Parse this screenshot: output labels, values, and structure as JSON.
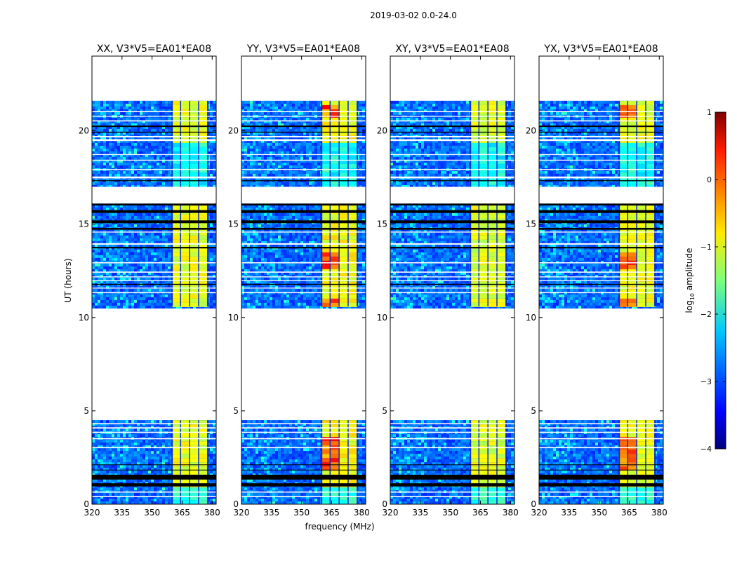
{
  "chart_data": {
    "type": "heatmap",
    "suptitle": "2019-03-02 0.0-24.0",
    "xlabel": "frequency (MHz)",
    "ylabel": "UT (hours)",
    "xlim": [
      320,
      382
    ],
    "ylim": [
      0,
      24
    ],
    "xticks": [
      320,
      335,
      350,
      365,
      380
    ],
    "yticks": [
      0,
      5,
      10,
      15,
      20
    ],
    "panels": [
      {
        "title": "XX, V3*V5=EA01*EA08",
        "pol": "XX",
        "strength": 0.85
      },
      {
        "title": "YY, V3*V5=EA01*EA08",
        "pol": "YY",
        "strength": 1.0
      },
      {
        "title": "XY, V3*V5=EA01*EA08",
        "pol": "XY",
        "strength": 0.78
      },
      {
        "title": "YX, V3*V5=EA01*EA08",
        "pol": "YX",
        "strength": 0.92
      }
    ],
    "data_blocks_ut": [
      [
        0.0,
        4.5
      ],
      [
        10.6,
        21.6
      ]
    ],
    "gap_ut": [
      [
        4.5,
        10.6
      ],
      [
        16.1,
        17.0
      ],
      [
        21.6,
        24.0
      ]
    ],
    "rfi_band_mhz": [
      360,
      378
    ],
    "rfi_sub_channels_mhz": [
      [
        360,
        364.5
      ],
      [
        364.5,
        369
      ],
      [
        369,
        373.5
      ],
      [
        373.5,
        378
      ]
    ],
    "colorbar": {
      "label": "log10 amplitude",
      "label_main": "log",
      "label_sub": "10",
      "label_tail": " amplitude",
      "range": [
        -4,
        1
      ],
      "ticks": [
        1,
        0,
        -1,
        -2,
        -3,
        -4
      ],
      "tick_labels": [
        "1",
        "0",
        "−1",
        "−2",
        "−3",
        "−4"
      ],
      "colormap": "jet"
    }
  }
}
